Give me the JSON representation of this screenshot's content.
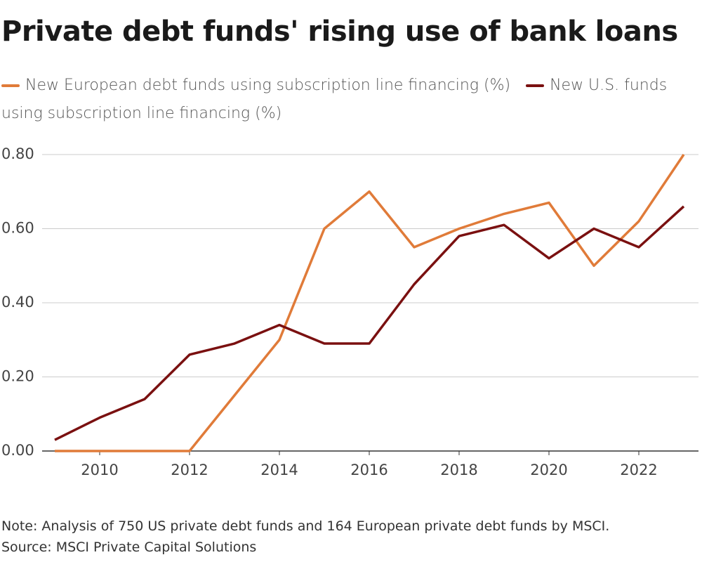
{
  "chart_data": {
    "type": "line",
    "title": "Private debt funds' rising use of bank loans",
    "x": [
      2009,
      2010,
      2011,
      2012,
      2013,
      2014,
      2015,
      2016,
      2017,
      2018,
      2019,
      2020,
      2021,
      2022,
      2023
    ],
    "series": [
      {
        "name": "New European debt funds using subscription line financing (%)",
        "color": "#e07b39",
        "values": [
          0,
          0,
          0,
          0,
          0.15,
          0.3,
          0.6,
          0.7,
          0.55,
          0.6,
          0.64,
          0.67,
          0.5,
          0.62,
          0.8
        ]
      },
      {
        "name": "New U.S. funds using subscription line financing (%)",
        "color": "#7a1010",
        "values": [
          0.03,
          0.09,
          0.14,
          0.26,
          0.29,
          0.34,
          0.29,
          0.29,
          0.45,
          0.58,
          0.61,
          0.52,
          0.6,
          0.55,
          0.66
        ]
      }
    ],
    "xlim": [
      2009,
      2023
    ],
    "xticks": [
      2010,
      2012,
      2014,
      2016,
      2018,
      2020,
      2022
    ],
    "ylim": [
      0,
      0.8
    ],
    "yticks": [
      {
        "value": 0,
        "label": "0.00"
      },
      {
        "value": 0.2,
        "label": "0.20"
      },
      {
        "value": 0.4,
        "label": "0.40"
      },
      {
        "value": 0.6,
        "label": "0.60"
      },
      {
        "value": 0.8,
        "label": "0.80"
      }
    ],
    "grid": true,
    "note": "Note: Analysis of 750 US private debt funds and 164 European private debt funds by MSCI.",
    "source": "Source: MSCI Private Capital Solutions"
  }
}
